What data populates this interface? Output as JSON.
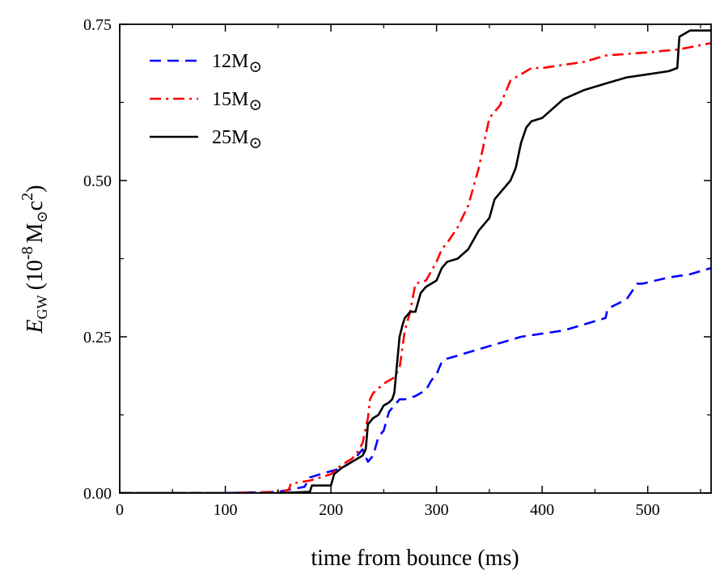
{
  "chart_data": {
    "type": "line",
    "title": "",
    "xlabel": "time from bounce (ms)",
    "ylabel": {
      "symbol": "E",
      "subscript": "GW",
      "unit_open": "(10",
      "exponent": "-8",
      "unit_mass": "M",
      "unit_c": "c",
      "unit_c_exp": "2",
      "unit_close": ")"
    },
    "xlim": [
      0,
      560
    ],
    "ylim": [
      0,
      0.75
    ],
    "xticks": [
      0,
      100,
      200,
      300,
      400,
      500
    ],
    "xtick_labels": [
      "0",
      "100",
      "200",
      "300",
      "400",
      "500"
    ],
    "yticks": [
      0,
      0.25,
      0.5,
      0.75
    ],
    "ytick_labels": [
      "0.00",
      "0.25",
      "0.50",
      "0.75"
    ],
    "legend_position": "top-left",
    "sun_symbol": "⊙",
    "series": [
      {
        "name": "12M⊙",
        "mass_label": "12M",
        "color": "#0000ff",
        "dash": "dashed",
        "x": [
          0,
          100,
          150,
          175,
          180,
          190,
          200,
          210,
          220,
          225,
          230,
          235,
          240,
          245,
          250,
          255,
          260,
          265,
          270,
          280,
          290,
          295,
          300,
          305,
          310,
          320,
          340,
          360,
          370,
          380,
          400,
          420,
          440,
          460,
          462,
          480,
          490,
          495,
          520,
          540,
          560
        ],
        "values": [
          0,
          0,
          0.002,
          0.01,
          0.025,
          0.03,
          0.035,
          0.04,
          0.05,
          0.06,
          0.07,
          0.05,
          0.06,
          0.09,
          0.1,
          0.13,
          0.14,
          0.15,
          0.15,
          0.155,
          0.165,
          0.18,
          0.19,
          0.21,
          0.215,
          0.22,
          0.23,
          0.24,
          0.245,
          0.25,
          0.255,
          0.26,
          0.27,
          0.28,
          0.295,
          0.31,
          0.335,
          0.335,
          0.345,
          0.35,
          0.36
        ]
      },
      {
        "name": "15M⊙",
        "mass_label": "15M",
        "color": "#ff0000",
        "dash": "dashdot",
        "x": [
          0,
          100,
          150,
          160,
          162,
          180,
          200,
          210,
          220,
          225,
          230,
          235,
          237,
          240,
          250,
          260,
          265,
          270,
          275,
          280,
          290,
          300,
          305,
          310,
          320,
          330,
          340,
          345,
          350,
          360,
          365,
          370,
          380,
          390,
          400,
          420,
          440,
          460,
          500,
          530,
          560
        ],
        "values": [
          0,
          0,
          0.002,
          0.005,
          0.015,
          0.02,
          0.03,
          0.045,
          0.055,
          0.065,
          0.08,
          0.12,
          0.15,
          0.16,
          0.175,
          0.185,
          0.2,
          0.26,
          0.29,
          0.335,
          0.34,
          0.37,
          0.39,
          0.4,
          0.425,
          0.46,
          0.52,
          0.56,
          0.6,
          0.62,
          0.64,
          0.66,
          0.67,
          0.68,
          0.68,
          0.685,
          0.69,
          0.7,
          0.705,
          0.71,
          0.72
        ]
      },
      {
        "name": "25M⊙",
        "mass_label": "25M",
        "color": "#000000",
        "dash": "solid",
        "x": [
          0,
          150,
          180,
          182,
          200,
          203,
          210,
          220,
          230,
          233,
          235,
          240,
          245,
          250,
          255,
          258,
          260,
          265,
          268,
          270,
          275,
          280,
          285,
          290,
          300,
          305,
          310,
          320,
          330,
          340,
          350,
          355,
          360,
          370,
          375,
          380,
          385,
          390,
          400,
          420,
          440,
          460,
          480,
          500,
          520,
          528,
          530,
          540,
          560
        ],
        "values": [
          0,
          0,
          0.002,
          0.012,
          0.012,
          0.03,
          0.04,
          0.05,
          0.06,
          0.07,
          0.11,
          0.12,
          0.125,
          0.14,
          0.145,
          0.15,
          0.16,
          0.25,
          0.27,
          0.28,
          0.29,
          0.29,
          0.32,
          0.33,
          0.34,
          0.36,
          0.37,
          0.375,
          0.39,
          0.42,
          0.44,
          0.47,
          0.48,
          0.5,
          0.52,
          0.56,
          0.585,
          0.595,
          0.6,
          0.63,
          0.645,
          0.655,
          0.665,
          0.67,
          0.675,
          0.68,
          0.73,
          0.74,
          0.74
        ]
      }
    ]
  }
}
